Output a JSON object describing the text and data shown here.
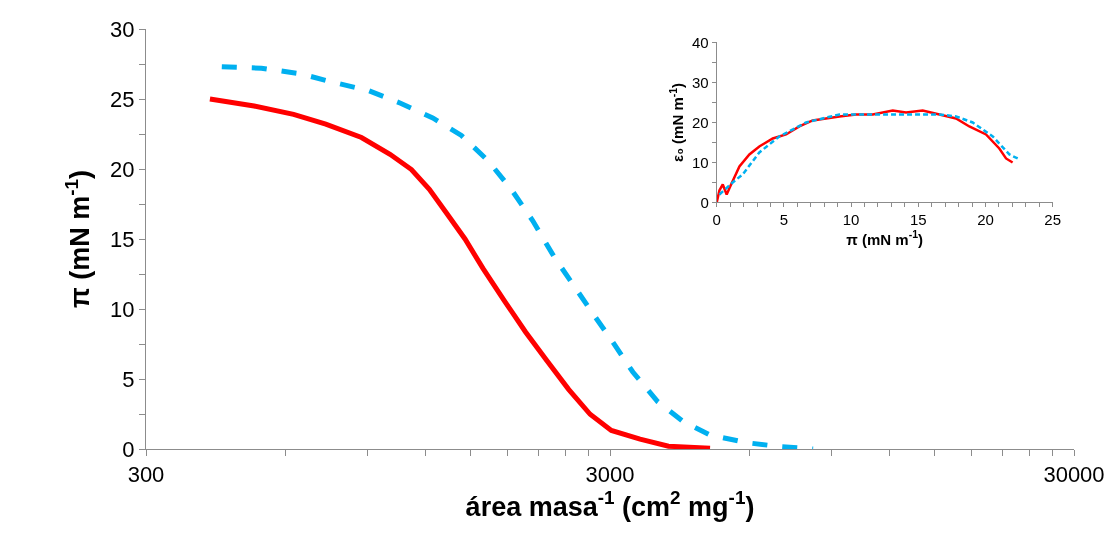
{
  "chart_data": [
    {
      "type": "line",
      "xlabel": "área masa$^{-1}$ (cm$^{2}$ mg$^{-1}$)",
      "ylabel": "π (mN m$^{-1}$)",
      "log": "x",
      "xlim": [
        300,
        30000
      ],
      "xticks": [
        300,
        {
          "value": 600,
          "label": null
        },
        {
          "value": 900,
          "label": null
        },
        {
          "value": 1200,
          "label": null
        },
        {
          "value": 1500,
          "label": null
        },
        {
          "value": 1800,
          "label": null
        },
        {
          "value": 2100,
          "label": null
        },
        {
          "value": 2400,
          "label": null
        },
        {
          "value": 2700,
          "label": null
        },
        3000,
        {
          "value": 6000,
          "label": null
        },
        {
          "value": 9000,
          "label": null
        },
        {
          "value": 12000,
          "label": null
        },
        {
          "value": 15000,
          "label": null
        },
        {
          "value": 18000,
          "label": null
        },
        {
          "value": 21000,
          "label": null
        },
        {
          "value": 24000,
          "label": null
        },
        {
          "value": 27000,
          "label": null
        },
        30000
      ],
      "ylim": [
        0,
        30
      ],
      "yticks": [
        0,
        {
          "value": 2.5,
          "label": null
        },
        5,
        {
          "value": 7.5,
          "label": null
        },
        10,
        {
          "value": 12.5,
          "label": null
        },
        15,
        {
          "value": 17.5,
          "label": null
        },
        20,
        {
          "value": 22.5,
          "label": null
        },
        25,
        {
          "value": 27.5,
          "label": null
        },
        30
      ],
      "series": [
        {
          "color": "#ff0000",
          "line_style": "solid",
          "x": [
            412,
            513,
            624,
            732,
            874,
            1007,
            1120,
            1224,
            1336,
            1461,
            1597,
            1775,
            1973,
            2194,
            2443,
            2718,
            3020,
            3483,
            4011,
            4929
          ],
          "values": [
            25.0,
            24.5,
            23.9,
            23.2,
            22.25,
            21.05,
            19.96,
            18.55,
            16.8,
            15.0,
            12.9,
            10.6,
            8.36,
            6.3,
            4.26,
            2.48,
            1.33,
            0.7,
            0.2,
            0.05
          ]
        },
        {
          "color": "#00b0f0",
          "line_style": "dashed",
          "x": [
            437,
            532,
            646,
            758,
            905,
            1061,
            1245,
            1435,
            1637,
            1838,
            2045,
            2276,
            2508,
            2765,
            3048,
            3360,
            3804,
            4310,
            4930,
            5911,
            6971,
            8220
          ],
          "values": [
            27.3,
            27.2,
            26.8,
            26.2,
            25.6,
            24.7,
            23.65,
            22.4,
            20.6,
            18.55,
            16.3,
            13.7,
            11.66,
            9.6,
            7.6,
            5.5,
            3.37,
            1.97,
            1.0,
            0.45,
            0.17,
            0
          ]
        }
      ]
    },
    {
      "type": "line",
      "xlabel": "π (mN m$^{-1}$)",
      "ylabel": "ε₀ (mN m$^{-1}$)",
      "xlim": [
        0,
        25
      ],
      "xticks": [
        0,
        {
          "value": 1,
          "label": null
        },
        {
          "value": 2,
          "label": null
        },
        {
          "value": 3,
          "label": null
        },
        {
          "value": 4,
          "label": null
        },
        5,
        {
          "value": 6,
          "label": null
        },
        {
          "value": 7,
          "label": null
        },
        {
          "value": 8,
          "label": null
        },
        {
          "value": 9,
          "label": null
        },
        10,
        {
          "value": 11,
          "label": null
        },
        {
          "value": 12,
          "label": null
        },
        {
          "value": 13,
          "label": null
        },
        {
          "value": 14,
          "label": null
        },
        15,
        {
          "value": 16,
          "label": null
        },
        {
          "value": 17,
          "label": null
        },
        {
          "value": 18,
          "label": null
        },
        {
          "value": 19,
          "label": null
        },
        20,
        {
          "value": 21,
          "label": null
        },
        {
          "value": 22,
          "label": null
        },
        {
          "value": 23,
          "label": null
        },
        {
          "value": 24,
          "label": null
        },
        25
      ],
      "ylim": [
        0,
        40
      ],
      "yticks": [
        0,
        {
          "value": 5,
          "label": null
        },
        10,
        {
          "value": 15,
          "label": null
        },
        20,
        {
          "value": 25,
          "label": null
        },
        30,
        {
          "value": 35,
          "label": null
        },
        40
      ],
      "series": [
        {
          "color": "#ff0000",
          "line_style": "solid",
          "x": [
            0,
            0.2,
            0.45,
            0.74,
            1.07,
            1.69,
            2.43,
            3.17,
            4.17,
            5.16,
            6.15,
            7.14,
            8.13,
            9.13,
            10.37,
            11.61,
            13.1,
            14.09,
            15.33,
            16.57,
            17.81,
            18.8,
            20.04,
            21.03,
            21.53,
            22.02
          ],
          "values": [
            0,
            3,
            4.5,
            2,
            4.5,
            9,
            12,
            14,
            16,
            17,
            19,
            20.5,
            21,
            21.5,
            22,
            22,
            23,
            22.5,
            23,
            22,
            21,
            19,
            17,
            13.5,
            11,
            10
          ]
        },
        {
          "color": "#00b0f0",
          "line_style": "dashed",
          "x": [
            0.2,
            1.19,
            1.93,
            3.17,
            4.66,
            6.65,
            9.13,
            11.61,
            14.09,
            16.57,
            17.81,
            19.05,
            20.54,
            21.78,
            22.4
          ],
          "values": [
            2,
            5,
            7,
            12.5,
            16.5,
            20,
            22,
            22,
            22,
            22,
            21.5,
            20,
            16.5,
            12,
            11
          ]
        }
      ]
    }
  ]
}
